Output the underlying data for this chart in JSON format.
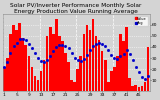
{
  "title": "Solar PV/Inverter Performance Monthly Solar Energy Production Value Running Average",
  "bar_values": [
    22,
    30,
    52,
    60,
    55,
    62,
    48,
    42,
    32,
    22,
    14,
    10,
    18,
    28,
    50,
    58,
    52,
    65,
    50,
    45,
    35,
    26,
    10,
    8,
    20,
    32,
    52,
    60,
    55,
    65,
    50,
    46,
    36,
    28,
    8,
    18,
    22,
    32,
    52,
    45,
    58,
    12,
    5,
    6,
    4,
    5,
    8,
    40
  ],
  "running_avg": [
    22,
    26,
    35,
    41,
    44,
    47,
    47,
    46,
    43,
    39,
    35,
    30,
    27,
    26,
    28,
    32,
    36,
    40,
    42,
    42,
    41,
    39,
    35,
    30,
    28,
    27,
    29,
    33,
    37,
    41,
    43,
    44,
    43,
    41,
    37,
    33,
    30,
    29,
    32,
    34,
    37,
    34,
    28,
    22,
    17,
    13,
    11,
    14
  ],
  "bar_color": "#FF0000",
  "avg_color": "#0000CC",
  "background_color": "#D4D4D4",
  "plot_bg": "#D4D4D4",
  "ylim": [
    0,
    70
  ],
  "ytick_values": [
    10,
    20,
    30,
    40,
    50,
    60
  ],
  "ytick_labels": [
    "10",
    "20",
    "30",
    "40",
    "50",
    "60"
  ],
  "grid_color": "#FFFFFF",
  "title_fontsize": 4.2,
  "tick_fontsize": 3.2,
  "n_bars": 48
}
